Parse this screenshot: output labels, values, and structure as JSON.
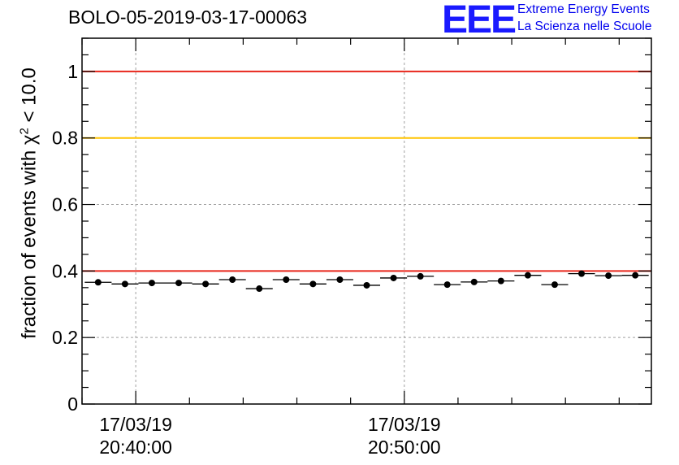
{
  "chart_data": {
    "type": "scatter",
    "title": "BOLO-05-2019-03-17-00063",
    "ylabel": {
      "prefix": "fraction of events with ",
      "chi": "χ",
      "sup": "2",
      "suffix": " < 10.0"
    },
    "ylim": [
      0,
      1.1
    ],
    "y_ticks": [
      {
        "value": 0,
        "label": "0"
      },
      {
        "value": 0.2,
        "label": "0.2"
      },
      {
        "value": 0.4,
        "label": "0.4"
      },
      {
        "value": 0.6,
        "label": "0.6"
      },
      {
        "value": 0.8,
        "label": "0.8"
      },
      {
        "value": 1,
        "label": "1"
      }
    ],
    "x_unit": "minutes after 20:38:00",
    "xlim": [
      0,
      21.2
    ],
    "x_ticks": [
      {
        "value": 2,
        "date": "17/03/19",
        "time": "20:40:00"
      },
      {
        "value": 12,
        "date": "17/03/19",
        "time": "20:50:00"
      }
    ],
    "reference_lines": [
      {
        "value": 1.0,
        "color": "#e8271c"
      },
      {
        "value": 0.8,
        "color": "#ffc400"
      },
      {
        "value": 0.4,
        "color": "#e8271c"
      }
    ],
    "points": [
      {
        "x": 0.6,
        "y": 0.366
      },
      {
        "x": 1.6,
        "y": 0.361
      },
      {
        "x": 2.6,
        "y": 0.364
      },
      {
        "x": 3.6,
        "y": 0.364
      },
      {
        "x": 4.6,
        "y": 0.361
      },
      {
        "x": 5.6,
        "y": 0.374
      },
      {
        "x": 6.6,
        "y": 0.347
      },
      {
        "x": 7.6,
        "y": 0.374
      },
      {
        "x": 8.6,
        "y": 0.361
      },
      {
        "x": 9.6,
        "y": 0.374
      },
      {
        "x": 10.6,
        "y": 0.357
      },
      {
        "x": 11.6,
        "y": 0.379
      },
      {
        "x": 12.6,
        "y": 0.384
      },
      {
        "x": 13.6,
        "y": 0.359
      },
      {
        "x": 14.6,
        "y": 0.367
      },
      {
        "x": 15.6,
        "y": 0.37
      },
      {
        "x": 16.6,
        "y": 0.387
      },
      {
        "x": 17.6,
        "y": 0.359
      },
      {
        "x": 18.6,
        "y": 0.392
      },
      {
        "x": 19.6,
        "y": 0.386
      },
      {
        "x": 20.6,
        "y": 0.387
      }
    ],
    "x_halfwidth": 0.5,
    "grid": true
  },
  "logo": {
    "mark": "EEE",
    "line1": "Extreme Energy Events",
    "line2": "La Scienza nelle Scuole"
  },
  "colors": {
    "axis": "#000000",
    "grid": "#a0a0a0",
    "marker": "#000000",
    "logo": "#1a1aff"
  }
}
